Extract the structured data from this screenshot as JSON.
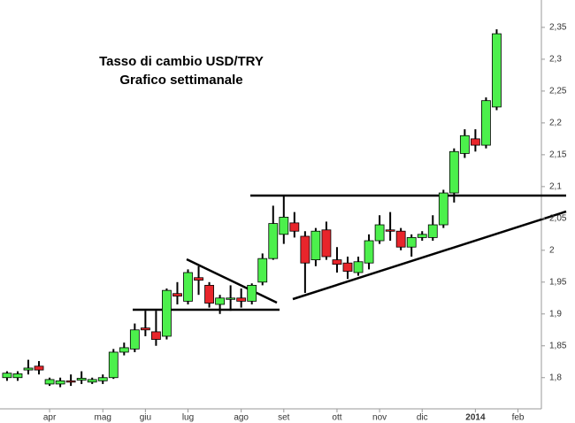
{
  "chart_data": {
    "type": "candlestick",
    "title": "Tasso di cambio USD/TRY",
    "subtitle": "Grafico settimanale",
    "x": [
      0,
      1,
      2,
      3,
      4,
      5,
      6,
      7,
      8,
      9,
      10,
      11,
      12,
      13,
      14,
      15,
      16,
      17,
      18,
      19,
      20,
      21,
      22,
      23,
      24,
      25,
      26,
      27,
      28,
      29,
      30,
      31,
      32,
      33,
      34,
      35,
      36,
      37,
      38,
      39,
      40,
      41,
      42,
      43,
      44,
      45,
      46
    ],
    "open": [
      1.8,
      1.8,
      1.812,
      1.818,
      1.79,
      1.79,
      1.795,
      1.796,
      1.793,
      1.795,
      1.8,
      1.84,
      1.845,
      1.878,
      1.872,
      1.865,
      1.932,
      1.92,
      1.957,
      1.945,
      1.915,
      1.923,
      1.925,
      1.92,
      1.95,
      1.987,
      2.025,
      2.043,
      2.022,
      1.985,
      2.032,
      1.985,
      1.98,
      1.965,
      1.98,
      2.015,
      2.032,
      2.03,
      2.005,
      2.02,
      2.02,
      2.04,
      2.09,
      2.152,
      2.175,
      2.165,
      2.225
    ],
    "high": [
      1.81,
      1.81,
      1.828,
      1.826,
      1.8,
      1.8,
      1.805,
      1.81,
      1.8,
      1.805,
      1.845,
      1.855,
      1.885,
      1.905,
      1.905,
      1.94,
      1.95,
      1.97,
      1.975,
      1.95,
      1.93,
      1.945,
      1.94,
      1.948,
      1.995,
      2.07,
      2.085,
      2.06,
      2.03,
      2.035,
      2.045,
      2.005,
      1.99,
      1.99,
      2.025,
      2.055,
      2.06,
      2.035,
      2.025,
      2.03,
      2.055,
      2.095,
      2.16,
      2.19,
      2.19,
      2.24,
      2.347
    ],
    "low": [
      1.795,
      1.795,
      1.805,
      1.805,
      1.787,
      1.785,
      1.787,
      1.79,
      1.79,
      1.79,
      1.798,
      1.835,
      1.84,
      1.865,
      1.85,
      1.86,
      1.915,
      1.915,
      1.93,
      1.91,
      1.9,
      1.905,
      1.91,
      1.915,
      1.945,
      1.985,
      2.01,
      2.02,
      1.933,
      1.975,
      1.985,
      1.965,
      1.955,
      1.96,
      1.97,
      2.01,
      2.015,
      2.0,
      1.99,
      2.015,
      2.015,
      2.035,
      2.075,
      2.145,
      2.155,
      2.16,
      2.22
    ],
    "close": [
      1.807,
      1.806,
      1.815,
      1.812,
      1.797,
      1.795,
      1.793,
      1.799,
      1.797,
      1.8,
      1.84,
      1.847,
      1.875,
      1.875,
      1.86,
      1.937,
      1.928,
      1.965,
      1.953,
      1.917,
      1.925,
      1.925,
      1.92,
      1.945,
      1.987,
      2.042,
      2.052,
      2.03,
      1.98,
      2.03,
      1.99,
      1.978,
      1.967,
      1.982,
      2.015,
      2.04,
      2.03,
      2.005,
      2.02,
      2.025,
      2.04,
      2.09,
      2.155,
      2.18,
      2.165,
      2.235,
      2.34
    ],
    "up_color": "#4cf04c",
    "down_color": "#e8252b",
    "xlim": [
      -0.66,
      50.2
    ],
    "xticks": [
      {
        "value": 4,
        "label": "apr"
      },
      {
        "value": 9,
        "label": "mag"
      },
      {
        "value": 13,
        "label": "giu"
      },
      {
        "value": 17,
        "label": "lug"
      },
      {
        "value": 22,
        "label": "ago"
      },
      {
        "value": 26,
        "label": "set"
      },
      {
        "value": 31,
        "label": "ott"
      },
      {
        "value": 35,
        "label": "nov"
      },
      {
        "value": 39,
        "label": "dic"
      },
      {
        "value": 44,
        "label": "2014"
      },
      {
        "value": 48,
        "label": "feb"
      }
    ],
    "ylim": [
      1.751,
      2.393
    ],
    "yticks": [
      {
        "value": 1.8,
        "label": "1,8"
      },
      {
        "value": 1.85,
        "label": "1,85"
      },
      {
        "value": 1.9,
        "label": "1,9"
      },
      {
        "value": 1.95,
        "label": "1,95"
      },
      {
        "value": 2,
        "label": "2"
      },
      {
        "value": 2.05,
        "label": "2,05"
      },
      {
        "value": 2.1,
        "label": "2,1"
      },
      {
        "value": 2.15,
        "label": "2,15"
      },
      {
        "value": 2.2,
        "label": "2,2"
      },
      {
        "value": 2.25,
        "label": "2,25"
      },
      {
        "value": 2.3,
        "label": "2,3"
      },
      {
        "value": 2.35,
        "label": "2,35"
      }
    ]
  }
}
